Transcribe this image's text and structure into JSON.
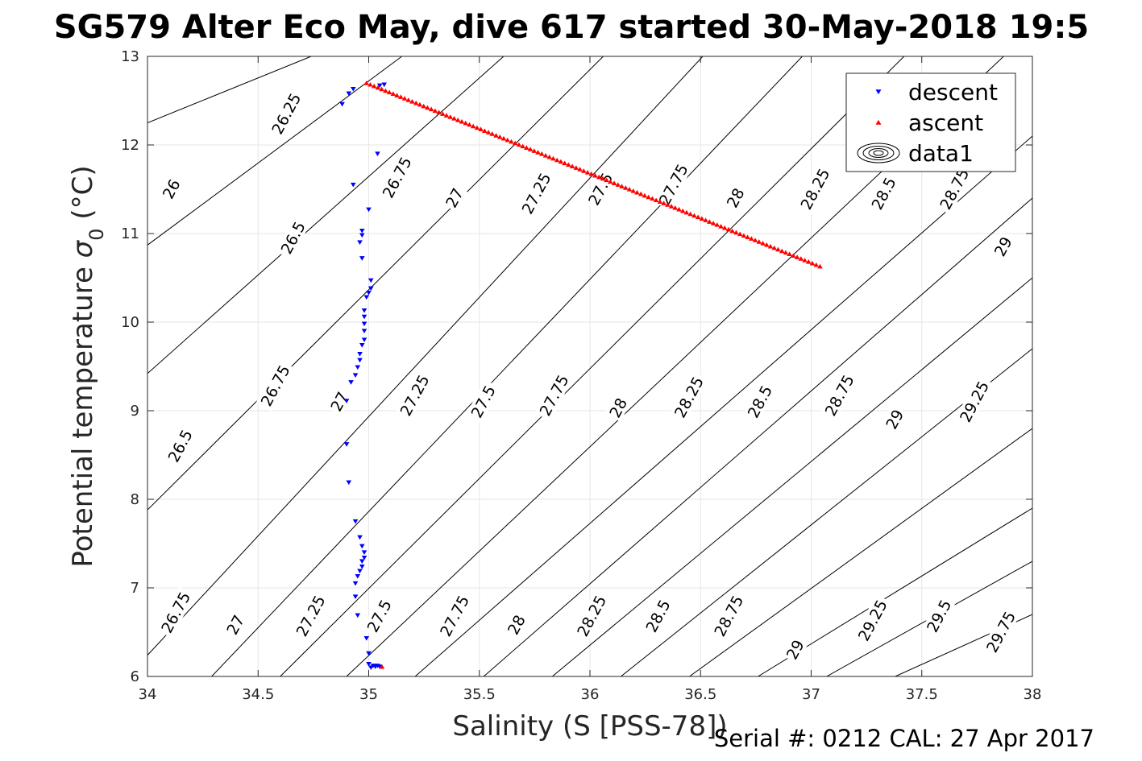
{
  "chart_data": {
    "type": "scatter",
    "title": "SG579 Alter Eco May, dive 617 started 30-May-2018 19:5",
    "xlabel": "Salinity (S [PSS-78])",
    "ylabel_main": "Potential temperature ",
    "ylabel_sigma": "σ",
    "ylabel_sub": "0",
    "ylabel_unit": " (°C)",
    "xlim": [
      34,
      38
    ],
    "ylim": [
      6,
      13
    ],
    "xticks": [
      34,
      34.5,
      35,
      35.5,
      36,
      36.5,
      37,
      37.5,
      38
    ],
    "yticks": [
      6,
      7,
      8,
      9,
      10,
      11,
      12,
      13
    ],
    "grid": true,
    "legend_position": "top-right",
    "legend": [
      "descent",
      "ascent",
      "data1"
    ],
    "series": [
      {
        "name": "descent",
        "marker": "triangle-down",
        "color": "#0000ff",
        "points": [
          [
            35.07,
            12.68
          ],
          [
            35.05,
            12.67
          ],
          [
            34.93,
            12.63
          ],
          [
            34.91,
            12.58
          ],
          [
            34.88,
            12.46
          ],
          [
            35.04,
            11.9
          ],
          [
            34.93,
            11.55
          ],
          [
            35.0,
            11.27
          ],
          [
            34.97,
            11.03
          ],
          [
            34.97,
            10.98
          ],
          [
            34.96,
            10.9
          ],
          [
            34.97,
            10.72
          ],
          [
            35.01,
            10.47
          ],
          [
            35.01,
            10.38
          ],
          [
            35.0,
            10.33
          ],
          [
            34.99,
            10.28
          ],
          [
            34.98,
            10.13
          ],
          [
            34.98,
            10.06
          ],
          [
            34.98,
            9.98
          ],
          [
            34.98,
            9.9
          ],
          [
            34.98,
            9.8
          ],
          [
            34.97,
            9.74
          ],
          [
            34.96,
            9.64
          ],
          [
            34.96,
            9.57
          ],
          [
            34.95,
            9.49
          ],
          [
            34.94,
            9.4
          ],
          [
            34.92,
            9.32
          ],
          [
            34.9,
            9.11
          ],
          [
            34.9,
            8.62
          ],
          [
            34.91,
            8.19
          ],
          [
            34.94,
            7.75
          ],
          [
            34.96,
            7.57
          ],
          [
            34.97,
            7.47
          ],
          [
            34.98,
            7.4
          ],
          [
            34.98,
            7.34
          ],
          [
            34.97,
            7.3
          ],
          [
            34.97,
            7.24
          ],
          [
            34.96,
            7.19
          ],
          [
            34.95,
            7.13
          ],
          [
            34.94,
            7.05
          ],
          [
            34.94,
            6.9
          ],
          [
            34.95,
            6.69
          ],
          [
            34.99,
            6.43
          ],
          [
            35.0,
            6.26
          ],
          [
            35.0,
            6.14
          ],
          [
            35.02,
            6.12
          ],
          [
            35.03,
            6.11
          ],
          [
            35.04,
            6.12
          ],
          [
            35.01,
            6.1
          ],
          [
            35.05,
            6.11
          ]
        ]
      },
      {
        "name": "ascent",
        "marker": "triangle-up",
        "color": "#ff0000",
        "start": [
          34.99,
          12.7
        ],
        "end": [
          37.04,
          10.63
        ],
        "count": 120,
        "extra_points": [
          [
            35.06,
            6.11
          ]
        ]
      }
    ],
    "sigma0_contours": [
      {
        "label": "26",
        "points": [
          [
            34.0,
            12.25
          ],
          [
            34.74,
            13.0
          ]
        ]
      },
      {
        "label": "26.25",
        "points": [
          [
            34.0,
            10.87
          ],
          [
            35.15,
            13.0
          ]
        ]
      },
      {
        "label": "26.5",
        "points": [
          [
            34.0,
            9.42
          ],
          [
            35.61,
            13.0
          ]
        ]
      },
      {
        "label": "26.75",
        "points": [
          [
            34.0,
            7.88
          ],
          [
            36.06,
            13.0
          ]
        ]
      },
      {
        "label": "27",
        "points": [
          [
            34.0,
            6.24
          ],
          [
            36.51,
            13.0
          ]
        ]
      },
      {
        "label": "27.25",
        "points": [
          [
            34.29,
            6.0
          ],
          [
            36.96,
            13.0
          ]
        ]
      },
      {
        "label": "27.5",
        "points": [
          [
            34.6,
            6.0
          ],
          [
            37.42,
            13.0
          ]
        ]
      },
      {
        "label": "27.75",
        "points": [
          [
            34.9,
            6.0
          ],
          [
            37.87,
            13.0
          ]
        ]
      },
      {
        "label": "28",
        "points": [
          [
            35.21,
            6.0
          ],
          [
            38.0,
            12.1
          ]
        ]
      },
      {
        "label": "28.25",
        "points": [
          [
            35.52,
            6.0
          ],
          [
            38.0,
            11.4
          ]
        ]
      },
      {
        "label": "28.5",
        "points": [
          [
            35.83,
            6.0
          ],
          [
            38.0,
            10.5
          ]
        ]
      },
      {
        "label": "28.75",
        "points": [
          [
            36.14,
            6.0
          ],
          [
            38.0,
            9.7
          ]
        ]
      },
      {
        "label": "29",
        "points": [
          [
            36.45,
            6.0
          ],
          [
            38.0,
            8.8
          ]
        ]
      },
      {
        "label": "29.25",
        "points": [
          [
            36.76,
            6.0
          ],
          [
            38.0,
            7.9
          ]
        ]
      },
      {
        "label": "29.5",
        "points": [
          [
            37.07,
            6.0
          ],
          [
            38.0,
            7.3
          ]
        ]
      },
      {
        "label": "29.75",
        "points": [
          [
            37.38,
            6.0
          ],
          [
            38.0,
            6.7
          ]
        ]
      }
    ],
    "contour_labels": [
      {
        "text": "26",
        "x": 34.11,
        "y": 11.5
      },
      {
        "text": "26.25",
        "x": 34.63,
        "y": 12.35
      },
      {
        "text": "26.75",
        "x": 35.13,
        "y": 11.63
      },
      {
        "text": "27",
        "x": 35.39,
        "y": 11.4
      },
      {
        "text": "27.25",
        "x": 35.76,
        "y": 11.45
      },
      {
        "text": "27.5",
        "x": 36.05,
        "y": 11.5
      },
      {
        "text": "27.75",
        "x": 36.38,
        "y": 11.55
      },
      {
        "text": "28",
        "x": 36.66,
        "y": 11.4
      },
      {
        "text": "28.25",
        "x": 37.02,
        "y": 11.5
      },
      {
        "text": "28.5",
        "x": 37.33,
        "y": 11.45
      },
      {
        "text": "28.75",
        "x": 37.65,
        "y": 11.5
      },
      {
        "text": "29",
        "x": 37.87,
        "y": 10.85
      },
      {
        "text": "26.5",
        "x": 34.66,
        "y": 10.95
      },
      {
        "text": "26.75",
        "x": 34.58,
        "y": 9.28
      },
      {
        "text": "26.5",
        "x": 34.15,
        "y": 8.6
      },
      {
        "text": "27",
        "x": 34.87,
        "y": 9.1
      },
      {
        "text": "27.25",
        "x": 35.21,
        "y": 9.17
      },
      {
        "text": "27.5",
        "x": 35.52,
        "y": 9.1
      },
      {
        "text": "27.75",
        "x": 35.84,
        "y": 9.17
      },
      {
        "text": "28",
        "x": 36.13,
        "y": 9.03
      },
      {
        "text": "28.25",
        "x": 36.45,
        "y": 9.15
      },
      {
        "text": "28.5",
        "x": 36.77,
        "y": 9.1
      },
      {
        "text": "28.75",
        "x": 37.13,
        "y": 9.17
      },
      {
        "text": "29",
        "x": 37.38,
        "y": 8.9
      },
      {
        "text": "29.25",
        "x": 37.74,
        "y": 9.1
      },
      {
        "text": "26.75",
        "x": 34.13,
        "y": 6.72
      },
      {
        "text": "27",
        "x": 34.4,
        "y": 6.58
      },
      {
        "text": "27.25",
        "x": 34.74,
        "y": 6.68
      },
      {
        "text": "27.5",
        "x": 35.05,
        "y": 6.68
      },
      {
        "text": "27.75",
        "x": 35.39,
        "y": 6.68
      },
      {
        "text": "28",
        "x": 35.67,
        "y": 6.58
      },
      {
        "text": "28.25",
        "x": 36.01,
        "y": 6.68
      },
      {
        "text": "28.5",
        "x": 36.31,
        "y": 6.68
      },
      {
        "text": "28.75",
        "x": 36.63,
        "y": 6.68
      },
      {
        "text": "29",
        "x": 36.93,
        "y": 6.3
      },
      {
        "text": "29.25",
        "x": 37.28,
        "y": 6.63
      },
      {
        "text": "29.5",
        "x": 37.58,
        "y": 6.68
      },
      {
        "text": "29.75",
        "x": 37.86,
        "y": 6.5
      }
    ]
  },
  "footer": "Serial #: 0212  CAL: 27 Apr 2017"
}
